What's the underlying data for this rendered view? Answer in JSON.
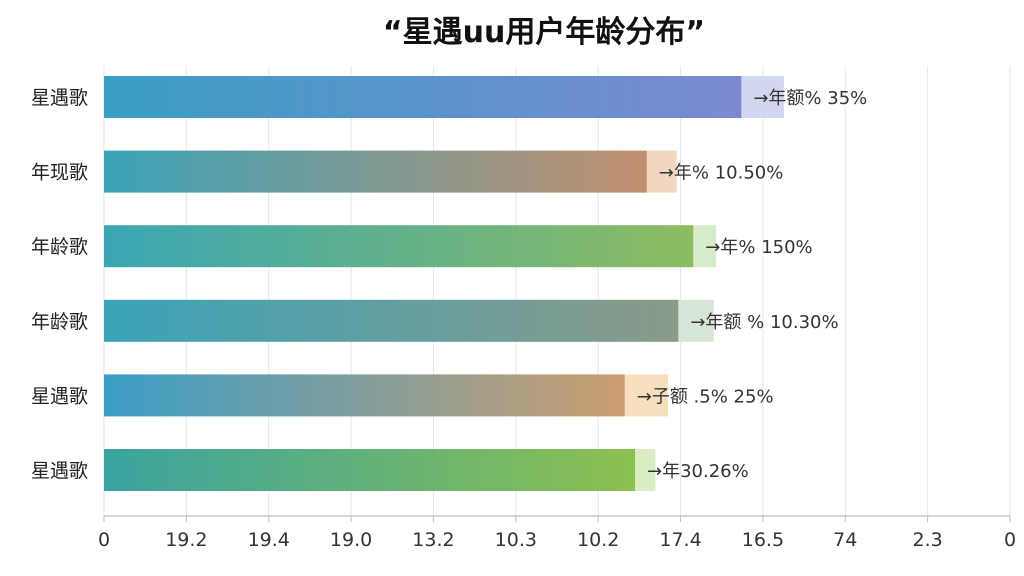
{
  "chart_data": {
    "type": "bar",
    "orientation": "horizontal",
    "title": "“星遇uu用户年龄分布”",
    "categories": [
      "星遇歌",
      "年现歌",
      "年龄歌",
      "年龄歌",
      "星遇歌",
      "星遇歌"
    ],
    "values": [
      80.9,
      68.9,
      74.8,
      72.9,
      66.1,
      67.4
    ],
    "extension_values": [
      5.4,
      3.8,
      2.9,
      4.5,
      5.5,
      2.6
    ],
    "data_labels": [
      "→年额% 35%",
      "→年% 10.50%",
      "→年% 150%",
      "→年额 % 10.30%",
      "→子额 .5% 25%",
      "→年30.26%"
    ],
    "x_tick_labels": [
      "0",
      "19.2",
      "19.4",
      "19.0",
      "13.2",
      "10.3",
      "10.2",
      "17.4",
      "16.5",
      "74",
      "2.3",
      "0"
    ],
    "xlim": [
      0,
      115
    ],
    "xlabel": "",
    "ylabel": "",
    "grid": "vertical",
    "legend": "none",
    "colors": {
      "bar_start": [
        "#3a9ec6",
        "#3aa3b8",
        "#3aa6b4",
        "#3aa3b8",
        "#3a9ec6",
        "#3aa3a0"
      ],
      "bar_end": [
        "#7b89d2",
        "#c2906e",
        "#8cbc60",
        "#8a9a88",
        "#cc9e70",
        "#8cc050"
      ],
      "extension": [
        "#d3d6f0",
        "#f1d7bf",
        "#d6ebc8",
        "#d7e5d7",
        "#f5dfbd",
        "#d9ecc4"
      ],
      "grid": "#e6e6e6",
      "axis": "#bdbdbd"
    }
  }
}
